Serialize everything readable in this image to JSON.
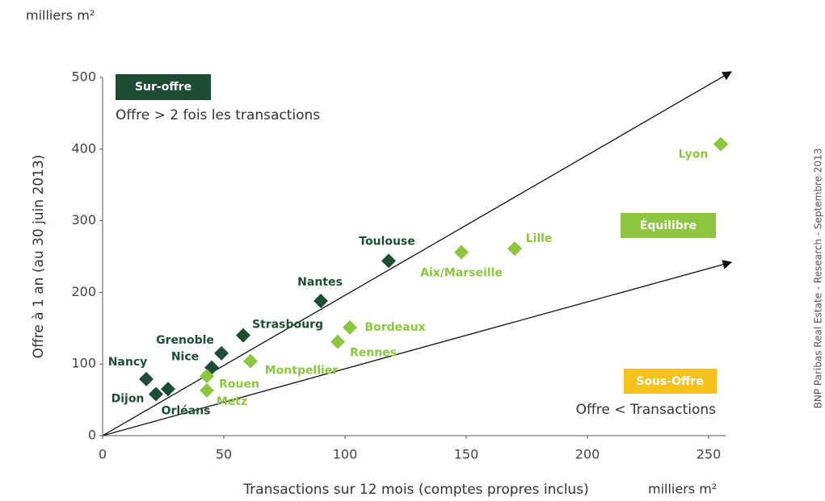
{
  "chart_data": {
    "type": "scatter",
    "y_unit": "milliers m²",
    "x_unit": "milliers m²",
    "ylabel": "Offre à 1 an (au 30 juin 2013)",
    "xlabel": "Transactions sur 12 mois (comptes propres inclus)",
    "source": "BNP Paribas Real Estate - Research - Septembre 2013",
    "zones": [
      {
        "title": "Sur-offre",
        "text": "Offre > 2 fois les transactions",
        "color": "#1e4d36"
      },
      {
        "title": "Équilibre",
        "color": "#8cc63f"
      },
      {
        "title": "Sous-Offre",
        "text": "Offre < Transactions",
        "color": "#f5c21b"
      }
    ],
    "xlim": [
      0,
      257
    ],
    "ylim": [
      0,
      500
    ],
    "xticks": [
      0,
      50,
      100,
      150,
      200,
      250
    ],
    "yticks": [
      0,
      100,
      200,
      300,
      400,
      500
    ],
    "series": [
      {
        "color": "#1e4d36",
        "labels": [
          "Nancy",
          "Dijon",
          "Orléans",
          "Nice",
          "Grenoble",
          "Strasbourg",
          "Nantes",
          "Toulouse"
        ],
        "x": [
          18,
          22,
          27,
          45,
          49,
          58,
          90,
          118
        ],
        "values": [
          79,
          58,
          65,
          95,
          115,
          140,
          188,
          244
        ]
      },
      {
        "color": "#8cc63f",
        "labels": [
          "Rouen",
          "Metz",
          "Montpellier",
          "Rennes",
          "Bordeaux",
          "Aix/Marseille",
          "Lille",
          "Lyon"
        ],
        "x": [
          43,
          43,
          61,
          97,
          102,
          148,
          170,
          255
        ],
        "values": [
          83,
          63,
          104,
          131,
          151,
          256,
          261,
          407
        ]
      }
    ]
  }
}
